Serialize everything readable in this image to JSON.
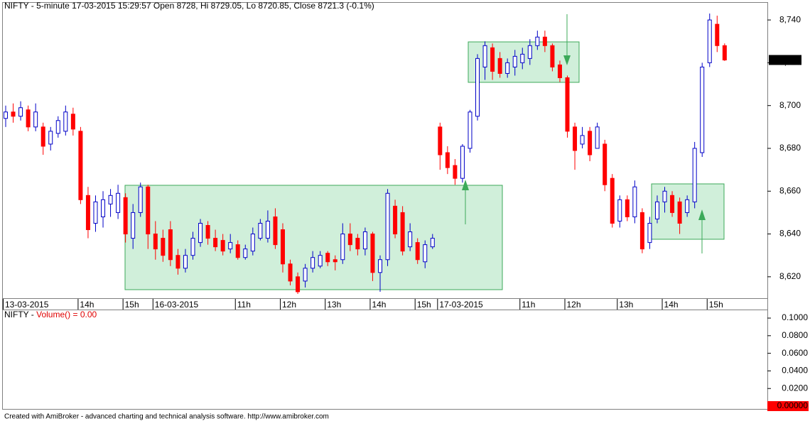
{
  "chart_data": [
    {
      "type": "candlestick",
      "title": "NIFTY - 5-minute 17-03-2015 15:29:57 Open 8728, Hi 8729.05, Lo 8720.85, Close 8721.3 (-0.1%)",
      "categories": [
        "13-03-2015",
        null,
        null,
        null,
        null,
        null,
        null,
        null,
        null,
        null,
        "14h",
        null,
        null,
        null,
        null,
        null,
        "15h",
        null,
        null,
        null,
        "16-03-2015",
        null,
        null,
        null,
        null,
        null,
        null,
        null,
        null,
        null,
        null,
        "11h",
        null,
        null,
        null,
        null,
        null,
        "12h",
        null,
        null,
        null,
        null,
        null,
        "13h",
        null,
        null,
        null,
        null,
        null,
        "14h",
        null,
        null,
        null,
        null,
        null,
        "15h",
        null,
        null,
        "17-03-2015",
        null,
        null,
        null,
        null,
        null,
        null,
        null,
        null,
        null,
        null,
        "11h",
        null,
        null,
        null,
        null,
        null,
        "12h",
        null,
        null,
        null,
        null,
        null,
        null,
        "13h",
        null,
        null,
        null,
        null,
        null,
        "14h",
        null,
        null,
        null,
        null,
        null,
        "15h",
        null,
        null
      ],
      "open": [
        8694,
        8697,
        8695,
        8698,
        8690,
        8690,
        8682,
        8687,
        8688,
        8696,
        8688,
        8658,
        8645,
        8648,
        8654,
        8650,
        8657,
        8638,
        8650,
        8662,
        8640,
        8638,
        8642,
        8630,
        8624,
        8630,
        8636,
        8644,
        8638,
        8637,
        8633,
        8635,
        8629,
        8632,
        8638,
        8638,
        8648,
        8642,
        8626,
        8620,
        8618,
        8624,
        8625,
        8631,
        8628,
        8628,
        8640,
        8638,
        8633,
        8640,
        8622,
        8628,
        8653,
        8650,
        8634,
        8636,
        8627,
        8634,
        8690,
        8678,
        8672,
        8666,
        8680,
        8695,
        8718,
        8727,
        8722,
        8715,
        8718,
        8720,
        8722,
        8728,
        8732,
        8728,
        8719,
        8713,
        8690,
        8682,
        8688,
        8680,
        8682,
        8666,
        8646,
        8656,
        8648,
        8650,
        8636,
        8647,
        8655,
        8658,
        8655,
        8650,
        8655,
        8678,
        8720,
        8738,
        8728
      ],
      "high": [
        8700,
        8701,
        8702,
        8700,
        8701,
        8692,
        8690,
        8695,
        8700,
        8699,
        8690,
        8662,
        8658,
        8660,
        8661,
        8663,
        8659,
        8654,
        8664,
        8663,
        8646,
        8642,
        8646,
        8633,
        8633,
        8641,
        8647,
        8646,
        8642,
        8640,
        8640,
        8637,
        8635,
        8643,
        8647,
        8651,
        8652,
        8645,
        8628,
        8622,
        8626,
        8632,
        8632,
        8632,
        8630,
        8645,
        8645,
        8640,
        8643,
        8641,
        8630,
        8661,
        8656,
        8653,
        8645,
        8638,
        8637,
        8640,
        8692,
        8681,
        8675,
        8682,
        8698,
        8724,
        8730,
        8729,
        8725,
        8722,
        8726,
        8727,
        8731,
        8735,
        8735,
        8729,
        8721,
        8714,
        8692,
        8690,
        8690,
        8692,
        8684,
        8668,
        8658,
        8658,
        8665,
        8652,
        8648,
        8658,
        8662,
        8660,
        8657,
        8658,
        8683,
        8720,
        8743,
        8742,
        8729.05
      ],
      "low": [
        8690,
        8692,
        8693,
        8688,
        8688,
        8677,
        8679,
        8685,
        8686,
        8686,
        8654,
        8638,
        8641,
        8643,
        8648,
        8647,
        8636,
        8633,
        8648,
        8633,
        8628,
        8627,
        8625,
        8621,
        8622,
        8628,
        8634,
        8635,
        8632,
        8630,
        8631,
        8628,
        8628,
        8630,
        8637,
        8636,
        8633,
        8622,
        8616,
        8612,
        8615,
        8622,
        8624,
        8625,
        8623,
        8626,
        8632,
        8630,
        8630,
        8618,
        8613,
        8625,
        8638,
        8630,
        8632,
        8626,
        8624,
        8633,
        8670,
        8668,
        8663,
        8664,
        8678,
        8693,
        8712,
        8712,
        8713,
        8713,
        8714,
        8717,
        8719,
        8726,
        8725,
        8716,
        8711,
        8685,
        8670,
        8680,
        8674,
        8680,
        8660,
        8643,
        8643,
        8646,
        8645,
        8631,
        8633,
        8645,
        8650,
        8648,
        8640,
        8648,
        8652,
        8676,
        8718,
        8725,
        8720.85
      ],
      "close": [
        8697,
        8695,
        8699,
        8690,
        8697,
        8681,
        8688,
        8693,
        8697,
        8689,
        8656,
        8642,
        8655,
        8656,
        8658,
        8659,
        8640,
        8650,
        8662,
        8640,
        8633,
        8630,
        8628,
        8624,
        8630,
        8638,
        8645,
        8638,
        8634,
        8632,
        8636,
        8629,
        8633,
        8640,
        8645,
        8646,
        8635,
        8626,
        8618,
        8613,
        8624,
        8629,
        8630,
        8627,
        8627,
        8640,
        8635,
        8633,
        8641,
        8622,
        8628,
        8659,
        8640,
        8632,
        8641,
        8628,
        8635,
        8638,
        8677,
        8671,
        8666,
        8681,
        8697,
        8722,
        8728,
        8716,
        8715,
        8720,
        8723,
        8724,
        8728,
        8732,
        8728,
        8718,
        8713,
        8688,
        8679,
        8686,
        8677,
        8690,
        8663,
        8645,
        8656,
        8648,
        8662,
        8633,
        8645,
        8655,
        8660,
        8650,
        8645,
        8656,
        8680,
        8718,
        8740,
        8728,
        8721.3
      ],
      "up_color": "#0000c8",
      "down_color": "#ff0000",
      "ylim": [
        8610,
        8748.33
      ],
      "yticks": [
        {
          "value": 8620,
          "label": "8,620"
        },
        {
          "value": 8640,
          "label": "8,640"
        },
        {
          "value": 8660,
          "label": "8,660"
        },
        {
          "value": 8680,
          "label": "8,680"
        },
        {
          "value": 8700,
          "label": "8,700"
        },
        {
          "value": 8720,
          "label": "8,720"
        },
        {
          "value": 8740,
          "label": "8,740"
        }
      ],
      "last_value": {
        "value": 8721.3,
        "label": "8,721.3"
      },
      "last_color": "#000000"
    },
    {
      "type": "bar",
      "symbol": "NIFTY - ",
      "title": "Volume() = 0.00",
      "title_color": "#e00000",
      "ylim": [
        -0.0032,
        0.1089
      ],
      "yticks": [
        {
          "value": 0.02,
          "label": "0.0200"
        },
        {
          "value": 0.04,
          "label": "0.0400"
        },
        {
          "value": 0.06,
          "label": "0.0600"
        },
        {
          "value": 0.08,
          "label": "0.0800"
        },
        {
          "value": 0.1,
          "label": "0.1000"
        }
      ],
      "last_value": {
        "value": 0,
        "label": "0.00000"
      },
      "last_color": "#ff0000"
    }
  ],
  "footer": "Created with AmiBroker - advanced charting and technical analysis software. http://www.amibroker.com"
}
